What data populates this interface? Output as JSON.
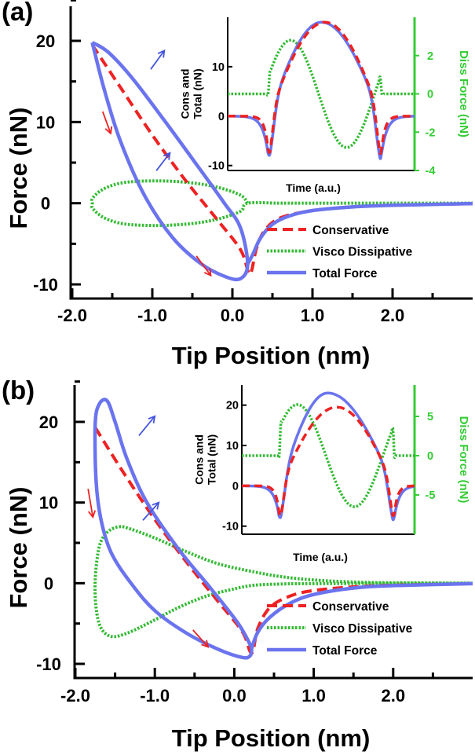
{
  "colors": {
    "conservative": "#ee2222",
    "dissipative": "#33bb33",
    "total": "#6b74ee",
    "arrow_red": "#ee2222",
    "arrow_blue": "#4455dd",
    "axis": "#000000",
    "green_axis": "#33cc33"
  },
  "chart_data": [
    {
      "panel": "(a)",
      "type": "line",
      "xlabel": "Tip Position (nm)",
      "ylabel": "Force (nN)",
      "xlim": [
        -2.3,
        3.0
      ],
      "ylim": [
        -11.5,
        23.5
      ],
      "xticks": [
        -2.0,
        -1.0,
        0.0,
        1.0,
        2.0
      ],
      "xtick_labels": [
        "-2.0",
        "-1.0",
        "0.0",
        "1.0",
        "2.0"
      ],
      "yticks": [
        -10,
        0,
        10,
        20
      ],
      "ytick_labels": [
        "-10",
        "0",
        "10",
        "20"
      ],
      "legend": [
        "Conservative",
        "Visco Dissipative",
        "Total Force"
      ],
      "legend_position": "bottom-right",
      "series": [
        {
          "name": "Conservative",
          "style": "dashed",
          "points": [
            [
              -1.75,
              19.5
            ],
            [
              -1.4,
              14.3
            ],
            [
              -1.0,
              8.4
            ],
            [
              -0.6,
              3.0
            ],
            [
              -0.2,
              -1.9
            ],
            [
              0.1,
              -5.7
            ],
            [
              0.2,
              -8.5
            ],
            [
              0.24,
              -8.3
            ],
            [
              0.3,
              -5.6
            ],
            [
              0.4,
              -3.4
            ],
            [
              0.6,
              -1.8
            ],
            [
              1.0,
              -0.9
            ],
            [
              1.5,
              -0.45
            ],
            [
              2.0,
              -0.25
            ],
            [
              3.0,
              -0.05
            ]
          ]
        },
        {
          "name": "Visco Dissipative",
          "style": "dotted",
          "points": [
            [
              0.19,
              0
            ],
            [
              0.1,
              1.0
            ],
            [
              -0.2,
              2.0
            ],
            [
              -0.55,
              2.55
            ],
            [
              -0.95,
              2.75
            ],
            [
              -1.35,
              2.55
            ],
            [
              -1.6,
              1.8
            ],
            [
              -1.74,
              0.7
            ],
            [
              -1.75,
              0
            ],
            [
              -1.74,
              -0.7
            ],
            [
              -1.6,
              -1.8
            ],
            [
              -1.35,
              -2.55
            ],
            [
              -0.95,
              -2.75
            ],
            [
              -0.55,
              -2.55
            ],
            [
              -0.2,
              -2.0
            ],
            [
              0.1,
              -1.0
            ],
            [
              0.19,
              0
            ],
            [
              0.6,
              0
            ],
            [
              1.0,
              0
            ],
            [
              2.0,
              0
            ],
            [
              3.0,
              0
            ]
          ]
        },
        {
          "name": "Total Force",
          "style": "solid",
          "points": [
            [
              -1.75,
              19.8
            ],
            [
              -1.55,
              18.6
            ],
            [
              -1.25,
              15.4
            ],
            [
              -0.85,
              10.2
            ],
            [
              -0.45,
              4.8
            ],
            [
              -0.1,
              0.0
            ],
            [
              0.1,
              -3.0
            ],
            [
              0.19,
              -7.5
            ],
            [
              0.1,
              -9.3
            ],
            [
              -0.1,
              -9.0
            ],
            [
              -0.4,
              -7.4
            ],
            [
              -0.75,
              -4.2
            ],
            [
              -1.1,
              1.0
            ],
            [
              -1.4,
              7.7
            ],
            [
              -1.6,
              14.0
            ],
            [
              -1.75,
              19.8
            ]
          ]
        },
        {
          "name": "Total Force tail",
          "style": "solid",
          "points": [
            [
              0.19,
              -7.5
            ],
            [
              0.26,
              -6.2
            ],
            [
              0.35,
              -4.3
            ],
            [
              0.5,
              -2.6
            ],
            [
              0.7,
              -1.6
            ],
            [
              1.0,
              -0.9
            ],
            [
              1.5,
              -0.45
            ],
            [
              2.0,
              -0.25
            ],
            [
              3.0,
              -0.05
            ]
          ]
        }
      ],
      "inset": {
        "xlabel": "Time (a.u.)",
        "ylabel_left": "Cons and Total (nN)",
        "ylabel_right": "Diss Force (nN)",
        "left_ylim": [
          -11,
          20
        ],
        "right_ylim": [
          -4,
          4
        ],
        "left_ticks": [
          "-10",
          "0",
          "10"
        ],
        "left_tick_values": [
          -10,
          0,
          10
        ],
        "right_ticks": [
          "2",
          "0",
          "-2",
          "-4"
        ],
        "right_tick_values": [
          2,
          0,
          -2,
          -4
        ]
      }
    },
    {
      "panel": "(b)",
      "type": "line",
      "xlabel": "Tip Position (nm)",
      "ylabel": "Force (nN)",
      "xlim": [
        -2.3,
        3.0
      ],
      "ylim": [
        -12,
        26
      ],
      "xticks": [
        -2.0,
        -1.0,
        0.0,
        1.0,
        2.0
      ],
      "xtick_labels": [
        "-2.0",
        "-1.0",
        "0.0",
        "1.0",
        "2.0"
      ],
      "yticks": [
        -10,
        0,
        10,
        20
      ],
      "ytick_labels": [
        "-10",
        "0",
        "10",
        "20"
      ],
      "legend": [
        "Conservative",
        "Visco Dissipative",
        "Total Force"
      ],
      "legend_position": "bottom-right",
      "series": [
        {
          "name": "Conservative",
          "style": "dashed",
          "points": [
            [
              -1.75,
              19.3
            ],
            [
              -1.4,
              13.8
            ],
            [
              -1.0,
              7.9
            ],
            [
              -0.6,
              2.6
            ],
            [
              -0.2,
              -2.3
            ],
            [
              0.1,
              -6.0
            ],
            [
              0.2,
              -8.5
            ],
            [
              0.24,
              -8.2
            ],
            [
              0.3,
              -5.5
            ],
            [
              0.45,
              -3.0
            ],
            [
              0.7,
              -1.6
            ],
            [
              1.0,
              -0.9
            ],
            [
              1.5,
              -0.45
            ],
            [
              2.0,
              -0.25
            ],
            [
              3.0,
              -0.05
            ]
          ]
        },
        {
          "name": "Visco Dissipative",
          "style": "dotted",
          "points": [
            [
              3.0,
              0
            ],
            [
              2.0,
              0.05
            ],
            [
              1.5,
              0.15
            ],
            [
              1.0,
              0.4
            ],
            [
              0.6,
              0.8
            ],
            [
              0.25,
              1.4
            ],
            [
              -0.2,
              2.4
            ],
            [
              -0.6,
              3.9
            ],
            [
              -1.0,
              5.6
            ],
            [
              -1.3,
              6.7
            ],
            [
              -1.45,
              7.0
            ],
            [
              -1.6,
              6.3
            ],
            [
              -1.7,
              4.5
            ],
            [
              -1.75,
              0.5
            ],
            [
              -1.74,
              -3.0
            ],
            [
              -1.68,
              -5.5
            ],
            [
              -1.55,
              -6.6
            ],
            [
              -1.35,
              -6.2
            ],
            [
              -1.05,
              -4.8
            ],
            [
              -0.7,
              -3.0
            ],
            [
              -0.35,
              -1.6
            ],
            [
              0.0,
              -0.7
            ],
            [
              0.25,
              -0.25
            ],
            [
              0.6,
              -0.1
            ],
            [
              1.0,
              -0.05
            ],
            [
              3.0,
              0
            ]
          ]
        },
        {
          "name": "Total Force",
          "style": "solid",
          "points": [
            [
              0.22,
              -8.0
            ],
            [
              0.05,
              -5.0
            ],
            [
              -0.3,
              -0.6
            ],
            [
              -0.7,
              4.2
            ],
            [
              -1.1,
              10.0
            ],
            [
              -1.35,
              15.4
            ],
            [
              -1.5,
              20.0
            ],
            [
              -1.6,
              22.6
            ],
            [
              -1.7,
              22.2
            ],
            [
              -1.75,
              19.8
            ],
            [
              -1.74,
              12.8
            ],
            [
              -1.68,
              8.0
            ],
            [
              -1.55,
              3.8
            ],
            [
              -1.3,
              0.0
            ],
            [
              -1.0,
              -3.4
            ],
            [
              -0.6,
              -6.2
            ],
            [
              -0.2,
              -8.2
            ],
            [
              0.1,
              -9.2
            ],
            [
              0.2,
              -9.0
            ],
            [
              0.22,
              -8.0
            ]
          ]
        },
        {
          "name": "Total Force tail",
          "style": "solid",
          "points": [
            [
              0.22,
              -8.0
            ],
            [
              0.3,
              -6.0
            ],
            [
              0.45,
              -4.2
            ],
            [
              0.7,
              -2.5
            ],
            [
              1.0,
              -1.4
            ],
            [
              1.5,
              -0.6
            ],
            [
              2.0,
              -0.3
            ],
            [
              3.0,
              -0.05
            ]
          ]
        }
      ],
      "inset": {
        "xlabel": "Time (a.u.)",
        "ylabel_left": "Cons and Total (nN)",
        "ylabel_right": "Diss Force (nN)",
        "left_ylim": [
          -12,
          25
        ],
        "right_ylim": [
          -10,
          9
        ],
        "left_ticks": [
          "20",
          "10",
          "0",
          "-10"
        ],
        "left_tick_values": [
          20,
          10,
          0,
          -10
        ],
        "right_ticks": [
          "5",
          "0",
          "-5"
        ],
        "right_tick_values": [
          5,
          0,
          -5
        ]
      }
    }
  ]
}
